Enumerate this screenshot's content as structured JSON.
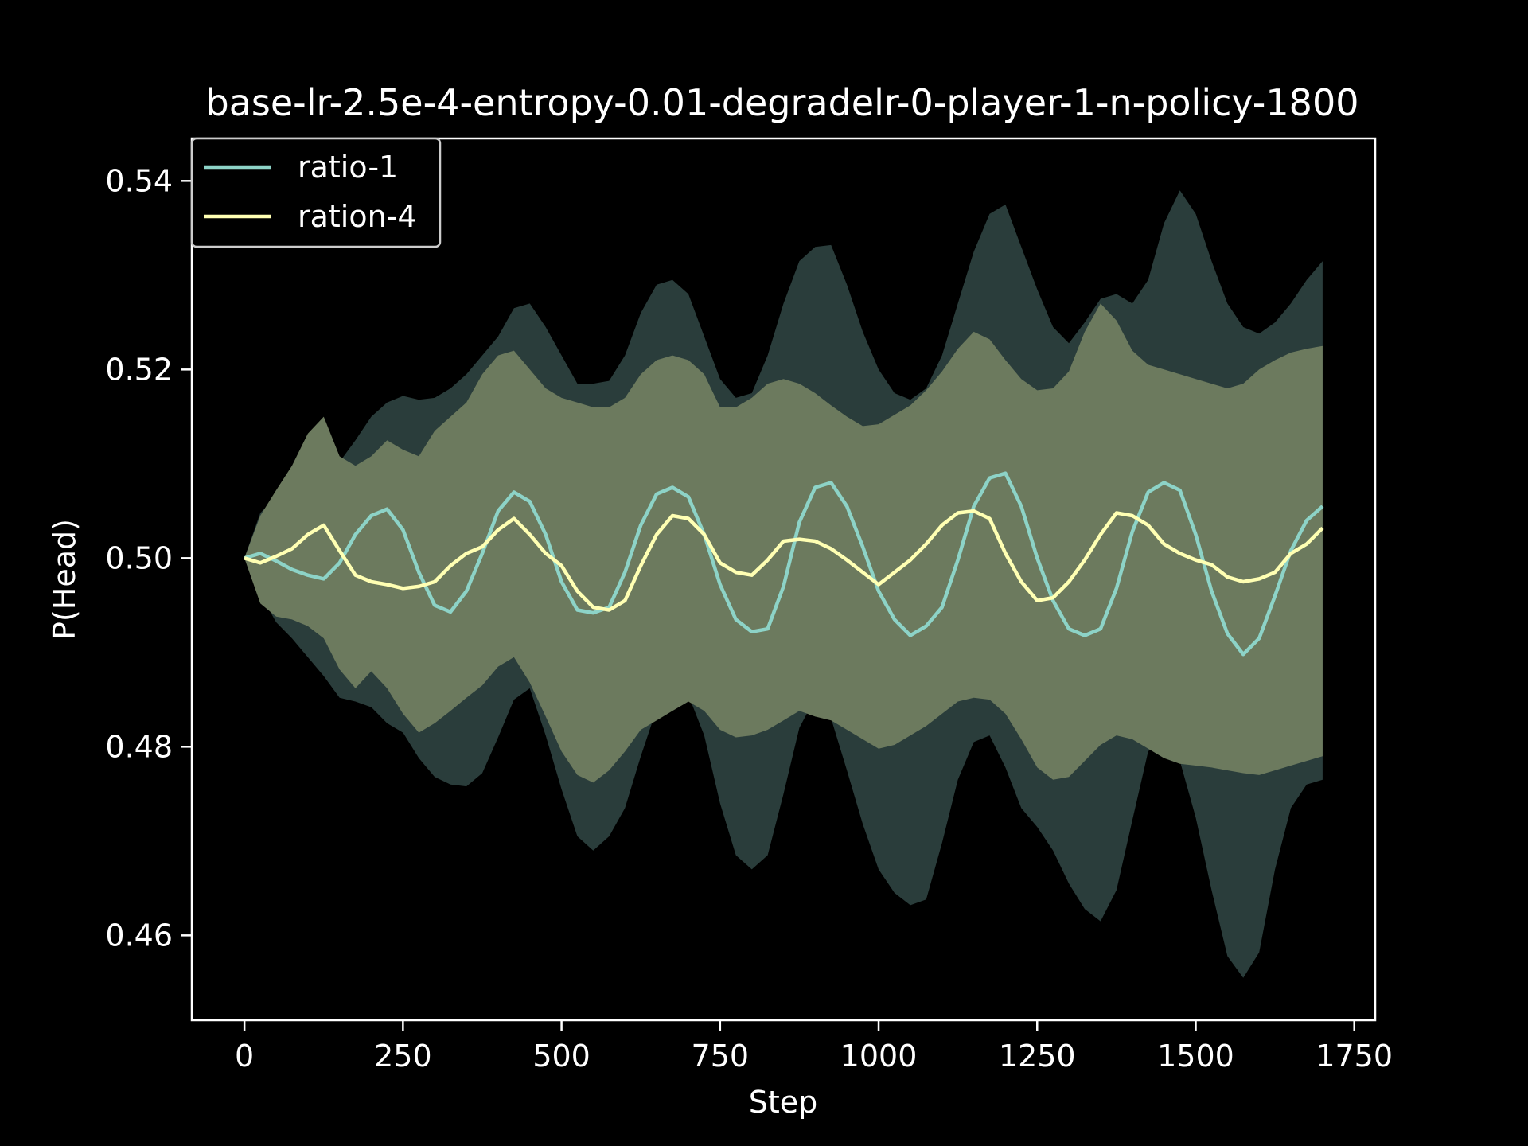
{
  "chart_data": {
    "type": "line",
    "title": "base-lr-2.5e-4-entropy-0.01-degradelr-0-player-1-n-policy-1800",
    "xlabel": "Step",
    "ylabel": "P(Head)",
    "xlim": [
      -83,
      1783
    ],
    "ylim": [
      0.451,
      0.5445
    ],
    "xticks": [
      0,
      250,
      500,
      750,
      1000,
      1250,
      1500,
      1750
    ],
    "xtick_labels": [
      "0",
      "250",
      "500",
      "750",
      "1000",
      "1250",
      "1500",
      "1750"
    ],
    "yticks": [
      0.46,
      0.48,
      0.5,
      0.52,
      0.54
    ],
    "ytick_labels": [
      "0.46",
      "0.48",
      "0.50",
      "0.52",
      "0.54"
    ],
    "grid": false,
    "legend": "upper-left",
    "series": [
      {
        "name": "ratio-1",
        "color": "#8dd3c7",
        "x": [
          0,
          25,
          50,
          75,
          100,
          125,
          150,
          175,
          200,
          225,
          250,
          275,
          300,
          325,
          350,
          375,
          400,
          425,
          450,
          475,
          500,
          525,
          550,
          575,
          600,
          625,
          650,
          675,
          700,
          725,
          750,
          775,
          800,
          825,
          850,
          875,
          900,
          925,
          950,
          975,
          1000,
          1025,
          1050,
          1075,
          1100,
          1125,
          1150,
          1175,
          1200,
          1225,
          1250,
          1275,
          1300,
          1325,
          1350,
          1375,
          1400,
          1425,
          1450,
          1475,
          1500,
          1525,
          1550,
          1575,
          1600,
          1625,
          1650,
          1675,
          1700
        ],
        "y": [
          0.5,
          0.5005,
          0.4997,
          0.4988,
          0.4982,
          0.4978,
          0.4995,
          0.5025,
          0.5045,
          0.5052,
          0.503,
          0.4985,
          0.495,
          0.4943,
          0.4965,
          0.5005,
          0.505,
          0.507,
          0.506,
          0.5025,
          0.4975,
          0.4945,
          0.4942,
          0.4948,
          0.4985,
          0.5035,
          0.5068,
          0.5075,
          0.5065,
          0.5025,
          0.4972,
          0.4935,
          0.4922,
          0.4925,
          0.497,
          0.5038,
          0.5075,
          0.508,
          0.5055,
          0.5012,
          0.4965,
          0.4935,
          0.4918,
          0.4928,
          0.4948,
          0.4998,
          0.5055,
          0.5085,
          0.509,
          0.5055,
          0.5,
          0.4955,
          0.4925,
          0.4918,
          0.4925,
          0.4968,
          0.5028,
          0.507,
          0.508,
          0.5072,
          0.5025,
          0.4965,
          0.492,
          0.4898,
          0.4915,
          0.496,
          0.5008,
          0.504,
          0.5055
        ],
        "band_upper": [
          0.5,
          0.5048,
          0.5065,
          0.508,
          0.5095,
          0.51,
          0.5102,
          0.5125,
          0.515,
          0.5165,
          0.5172,
          0.5168,
          0.517,
          0.518,
          0.5195,
          0.5215,
          0.5235,
          0.5265,
          0.527,
          0.5245,
          0.5215,
          0.5185,
          0.5185,
          0.5188,
          0.5215,
          0.526,
          0.529,
          0.5295,
          0.528,
          0.5235,
          0.519,
          0.517,
          0.5175,
          0.5215,
          0.527,
          0.5315,
          0.533,
          0.5332,
          0.529,
          0.524,
          0.52,
          0.5175,
          0.5168,
          0.518,
          0.5215,
          0.527,
          0.5325,
          0.5365,
          0.5375,
          0.533,
          0.5285,
          0.5245,
          0.5228,
          0.525,
          0.5275,
          0.528,
          0.527,
          0.5295,
          0.5355,
          0.539,
          0.5365,
          0.5315,
          0.527,
          0.5245,
          0.5238,
          0.525,
          0.527,
          0.5295,
          0.5315
        ],
        "band_lower": [
          0.5,
          0.4962,
          0.4932,
          0.4915,
          0.4895,
          0.4875,
          0.4852,
          0.4848,
          0.4842,
          0.4825,
          0.4815,
          0.4788,
          0.4768,
          0.476,
          0.4758,
          0.4772,
          0.481,
          0.485,
          0.4862,
          0.4812,
          0.4755,
          0.4705,
          0.469,
          0.4705,
          0.4735,
          0.479,
          0.484,
          0.4865,
          0.4855,
          0.4812,
          0.474,
          0.4685,
          0.467,
          0.4685,
          0.475,
          0.482,
          0.4852,
          0.483,
          0.4775,
          0.4718,
          0.467,
          0.4645,
          0.4632,
          0.4638,
          0.4698,
          0.4765,
          0.4805,
          0.4812,
          0.4778,
          0.4735,
          0.4715,
          0.469,
          0.4655,
          0.4628,
          0.4615,
          0.4648,
          0.4722,
          0.4795,
          0.4812,
          0.4785,
          0.4725,
          0.4648,
          0.4578,
          0.4555,
          0.4582,
          0.467,
          0.4735,
          0.476,
          0.4765
        ]
      },
      {
        "name": "ration-4",
        "color": "#ffffb3",
        "x": [
          0,
          25,
          50,
          75,
          100,
          125,
          150,
          175,
          200,
          225,
          250,
          275,
          300,
          325,
          350,
          375,
          400,
          425,
          450,
          475,
          500,
          525,
          550,
          575,
          600,
          625,
          650,
          675,
          700,
          725,
          750,
          775,
          800,
          825,
          850,
          875,
          900,
          925,
          950,
          975,
          1000,
          1025,
          1050,
          1075,
          1100,
          1125,
          1150,
          1175,
          1200,
          1225,
          1250,
          1275,
          1300,
          1325,
          1350,
          1375,
          1400,
          1425,
          1450,
          1475,
          1500,
          1525,
          1550,
          1575,
          1600,
          1625,
          1650,
          1675,
          1700
        ],
        "y": [
          0.5,
          0.4995,
          0.5002,
          0.501,
          0.5025,
          0.5035,
          0.5008,
          0.4982,
          0.4975,
          0.4972,
          0.4968,
          0.497,
          0.4975,
          0.4992,
          0.5005,
          0.5012,
          0.503,
          0.5042,
          0.5025,
          0.5005,
          0.4992,
          0.4965,
          0.4948,
          0.4945,
          0.4955,
          0.4992,
          0.5025,
          0.5045,
          0.5042,
          0.5025,
          0.4995,
          0.4985,
          0.4982,
          0.4998,
          0.5018,
          0.502,
          0.5018,
          0.501,
          0.4998,
          0.4985,
          0.4972,
          0.4985,
          0.4998,
          0.5015,
          0.5035,
          0.5048,
          0.505,
          0.5042,
          0.5005,
          0.4975,
          0.4955,
          0.4958,
          0.4975,
          0.4998,
          0.5025,
          0.5048,
          0.5045,
          0.5035,
          0.5015,
          0.5005,
          0.4998,
          0.4993,
          0.498,
          0.4975,
          0.4978,
          0.4985,
          0.5005,
          0.5015,
          0.5032
        ],
        "band_upper": [
          0.5,
          0.5045,
          0.5072,
          0.5098,
          0.5132,
          0.515,
          0.5108,
          0.5098,
          0.5108,
          0.5125,
          0.5115,
          0.5108,
          0.5135,
          0.515,
          0.5165,
          0.5195,
          0.5215,
          0.522,
          0.52,
          0.518,
          0.517,
          0.5165,
          0.516,
          0.516,
          0.517,
          0.5195,
          0.521,
          0.5215,
          0.521,
          0.5195,
          0.516,
          0.516,
          0.517,
          0.5185,
          0.519,
          0.5185,
          0.5175,
          0.5162,
          0.515,
          0.514,
          0.5142,
          0.5152,
          0.5162,
          0.5178,
          0.5198,
          0.5222,
          0.524,
          0.5232,
          0.521,
          0.519,
          0.5178,
          0.518,
          0.5198,
          0.524,
          0.527,
          0.5252,
          0.522,
          0.5205,
          0.52,
          0.5195,
          0.519,
          0.5185,
          0.518,
          0.5185,
          0.52,
          0.521,
          0.5218,
          0.5222,
          0.5225
        ],
        "band_lower": [
          0.5,
          0.4952,
          0.4938,
          0.4935,
          0.4928,
          0.4915,
          0.4882,
          0.4862,
          0.488,
          0.4862,
          0.4835,
          0.4815,
          0.4825,
          0.4838,
          0.4852,
          0.4865,
          0.4885,
          0.4895,
          0.4868,
          0.4832,
          0.4795,
          0.477,
          0.4762,
          0.4775,
          0.4795,
          0.4818,
          0.4828,
          0.4838,
          0.4848,
          0.4838,
          0.4818,
          0.481,
          0.4812,
          0.4818,
          0.4828,
          0.4838,
          0.4832,
          0.4828,
          0.4818,
          0.4808,
          0.4798,
          0.4802,
          0.4812,
          0.4822,
          0.4835,
          0.4848,
          0.4852,
          0.485,
          0.4835,
          0.4808,
          0.4778,
          0.4765,
          0.4768,
          0.4785,
          0.4802,
          0.4812,
          0.4808,
          0.4798,
          0.4788,
          0.4782,
          0.478,
          0.4778,
          0.4775,
          0.4772,
          0.477,
          0.4775,
          0.478,
          0.4785,
          0.479
        ]
      }
    ]
  }
}
